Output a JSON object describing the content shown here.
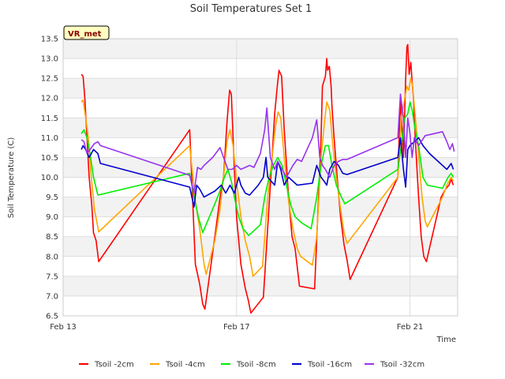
{
  "chart_data": {
    "type": "line",
    "title": "Soil Temperatures Set 1",
    "station_label": "VR_met",
    "xlabel": "Time",
    "ylabel": "Soil Temperature (C)",
    "xlim": [
      13.0,
      22.1
    ],
    "ylim": [
      6.5,
      13.5
    ],
    "x_ticks": [
      {
        "value": 13,
        "label": "Feb 13"
      },
      {
        "value": 17,
        "label": "Feb 17"
      },
      {
        "value": 21,
        "label": "Feb 21"
      }
    ],
    "y_ticks": [
      "6.5",
      "7.0",
      "7.5",
      "8.0",
      "8.5",
      "9.0",
      "9.5",
      "10.0",
      "10.5",
      "11.0",
      "11.5",
      "12.0",
      "12.5",
      "13.0",
      "13.5"
    ],
    "grid": true,
    "legend_position": "bottom",
    "series": [
      {
        "name": "Tsoil -2cm",
        "color": "#ff0000",
        "points": [
          [
            13.42,
            12.6
          ],
          [
            13.46,
            12.55
          ],
          [
            13.5,
            12.0
          ],
          [
            13.55,
            11.0
          ],
          [
            13.6,
            10.0
          ],
          [
            13.66,
            9.3
          ],
          [
            13.7,
            8.6
          ],
          [
            13.76,
            8.4
          ],
          [
            13.82,
            7.87
          ],
          [
            15.92,
            11.2
          ],
          [
            16.05,
            7.8
          ],
          [
            16.15,
            7.3
          ],
          [
            16.22,
            6.8
          ],
          [
            16.27,
            6.67
          ],
          [
            16.5,
            8.5
          ],
          [
            16.62,
            9.5
          ],
          [
            16.7,
            10.0
          ],
          [
            16.78,
            11.4
          ],
          [
            16.84,
            12.2
          ],
          [
            16.88,
            12.1
          ],
          [
            16.95,
            10.2
          ],
          [
            17.0,
            9.0
          ],
          [
            17.1,
            7.8
          ],
          [
            17.2,
            7.2
          ],
          [
            17.27,
            6.9
          ],
          [
            17.33,
            6.57
          ],
          [
            17.62,
            6.97
          ],
          [
            17.82,
            10.5
          ],
          [
            17.88,
            11.6
          ],
          [
            17.94,
            12.3
          ],
          [
            17.98,
            12.7
          ],
          [
            18.04,
            12.55
          ],
          [
            18.1,
            11.2
          ],
          [
            18.2,
            9.5
          ],
          [
            18.28,
            8.5
          ],
          [
            18.35,
            8.2
          ],
          [
            18.45,
            7.25
          ],
          [
            18.8,
            7.18
          ],
          [
            18.95,
            11.0
          ],
          [
            18.98,
            12.3
          ],
          [
            19.05,
            12.55
          ],
          [
            19.08,
            13.0
          ],
          [
            19.1,
            12.7
          ],
          [
            19.14,
            12.8
          ],
          [
            19.18,
            12.3
          ],
          [
            19.2,
            11.8
          ],
          [
            19.25,
            11.0
          ],
          [
            19.32,
            10.0
          ],
          [
            19.4,
            9.0
          ],
          [
            19.48,
            8.3
          ],
          [
            19.55,
            7.9
          ],
          [
            19.62,
            7.42
          ],
          [
            20.72,
            10.0
          ],
          [
            20.78,
            12.0
          ],
          [
            20.85,
            10.5
          ],
          [
            20.9,
            12.5
          ],
          [
            20.93,
            13.3
          ],
          [
            20.95,
            13.35
          ],
          [
            20.98,
            12.6
          ],
          [
            21.02,
            12.9
          ],
          [
            21.05,
            12.4
          ],
          [
            21.08,
            12.0
          ],
          [
            21.12,
            11.0
          ],
          [
            21.2,
            9.5
          ],
          [
            21.26,
            8.5
          ],
          [
            21.32,
            8.0
          ],
          [
            21.38,
            7.87
          ],
          [
            21.72,
            9.5
          ],
          [
            21.82,
            9.7
          ],
          [
            21.9,
            9.8
          ],
          [
            21.95,
            9.95
          ],
          [
            22.0,
            9.8
          ]
        ]
      },
      {
        "name": "Tsoil -4cm",
        "color": "#ffa500",
        "points": [
          [
            13.42,
            11.9
          ],
          [
            13.46,
            11.95
          ],
          [
            13.52,
            11.5
          ],
          [
            13.58,
            11.0
          ],
          [
            13.65,
            10.0
          ],
          [
            13.72,
            9.2
          ],
          [
            13.82,
            8.62
          ],
          [
            15.92,
            10.8
          ],
          [
            16.05,
            9.4
          ],
          [
            16.15,
            8.7
          ],
          [
            16.25,
            7.8
          ],
          [
            16.3,
            7.55
          ],
          [
            16.5,
            8.4
          ],
          [
            16.62,
            9.2
          ],
          [
            16.7,
            10.0
          ],
          [
            16.78,
            10.9
          ],
          [
            16.85,
            11.2
          ],
          [
            16.92,
            10.8
          ],
          [
            17.0,
            9.9
          ],
          [
            17.1,
            9.0
          ],
          [
            17.2,
            8.4
          ],
          [
            17.3,
            8.0
          ],
          [
            17.38,
            7.5
          ],
          [
            17.6,
            7.75
          ],
          [
            17.72,
            9.5
          ],
          [
            17.82,
            10.5
          ],
          [
            17.9,
            11.3
          ],
          [
            17.96,
            11.65
          ],
          [
            18.02,
            11.5
          ],
          [
            18.1,
            10.5
          ],
          [
            18.2,
            9.4
          ],
          [
            18.3,
            8.7
          ],
          [
            18.4,
            8.2
          ],
          [
            18.48,
            8.0
          ],
          [
            18.75,
            7.78
          ],
          [
            18.85,
            8.5
          ],
          [
            18.95,
            10.5
          ],
          [
            19.02,
            11.3
          ],
          [
            19.08,
            11.9
          ],
          [
            19.15,
            11.7
          ],
          [
            19.22,
            10.8
          ],
          [
            19.3,
            10.0
          ],
          [
            19.4,
            9.2
          ],
          [
            19.48,
            8.6
          ],
          [
            19.55,
            8.33
          ],
          [
            20.72,
            10.0
          ],
          [
            20.8,
            11.5
          ],
          [
            20.88,
            12.0
          ],
          [
            20.93,
            12.3
          ],
          [
            20.97,
            12.2
          ],
          [
            21.02,
            12.5
          ],
          [
            21.06,
            12.3
          ],
          [
            21.1,
            11.8
          ],
          [
            21.18,
            10.8
          ],
          [
            21.28,
            9.5
          ],
          [
            21.35,
            8.9
          ],
          [
            21.4,
            8.75
          ],
          [
            21.75,
            9.5
          ],
          [
            21.85,
            9.8
          ],
          [
            21.95,
            10.0
          ],
          [
            22.0,
            9.9
          ]
        ]
      },
      {
        "name": "Tsoil -8cm",
        "color": "#00ee00",
        "points": [
          [
            13.42,
            11.1
          ],
          [
            13.48,
            11.2
          ],
          [
            13.55,
            11.0
          ],
          [
            13.62,
            10.6
          ],
          [
            13.7,
            10.0
          ],
          [
            13.8,
            9.55
          ],
          [
            15.92,
            10.1
          ],
          [
            16.02,
            9.5
          ],
          [
            16.12,
            9.0
          ],
          [
            16.22,
            8.6
          ],
          [
            16.45,
            9.2
          ],
          [
            16.6,
            9.6
          ],
          [
            16.72,
            10.0
          ],
          [
            16.8,
            10.2
          ],
          [
            16.88,
            9.9
          ],
          [
            16.95,
            9.5
          ],
          [
            17.05,
            9.0
          ],
          [
            17.15,
            8.7
          ],
          [
            17.28,
            8.53
          ],
          [
            17.55,
            8.8
          ],
          [
            17.65,
            9.5
          ],
          [
            17.75,
            10.0
          ],
          [
            17.85,
            10.3
          ],
          [
            17.95,
            10.5
          ],
          [
            18.05,
            10.3
          ],
          [
            18.15,
            9.8
          ],
          [
            18.25,
            9.3
          ],
          [
            18.35,
            9.0
          ],
          [
            18.5,
            8.85
          ],
          [
            18.72,
            8.7
          ],
          [
            18.85,
            9.5
          ],
          [
            18.95,
            10.3
          ],
          [
            19.05,
            10.8
          ],
          [
            19.12,
            10.8
          ],
          [
            19.2,
            10.3
          ],
          [
            19.3,
            9.8
          ],
          [
            19.42,
            9.5
          ],
          [
            19.5,
            9.33
          ],
          [
            20.72,
            10.2
          ],
          [
            20.8,
            10.8
          ],
          [
            20.88,
            11.5
          ],
          [
            20.95,
            11.6
          ],
          [
            21.0,
            11.9
          ],
          [
            21.05,
            11.7
          ],
          [
            21.12,
            11.2
          ],
          [
            21.2,
            10.8
          ],
          [
            21.3,
            10.0
          ],
          [
            21.4,
            9.8
          ],
          [
            21.75,
            9.72
          ],
          [
            21.88,
            10.0
          ],
          [
            21.95,
            10.1
          ],
          [
            22.0,
            10.0
          ]
        ]
      },
      {
        "name": "Tsoil -16cm",
        "color": "#0000cc",
        "points": [
          [
            13.42,
            10.7
          ],
          [
            13.46,
            10.8
          ],
          [
            13.52,
            10.7
          ],
          [
            13.6,
            10.5
          ],
          [
            13.7,
            10.7
          ],
          [
            13.8,
            10.6
          ],
          [
            13.86,
            10.35
          ],
          [
            15.92,
            9.75
          ],
          [
            16.02,
            9.25
          ],
          [
            16.08,
            9.8
          ],
          [
            16.15,
            9.7
          ],
          [
            16.25,
            9.5
          ],
          [
            16.5,
            9.65
          ],
          [
            16.65,
            9.8
          ],
          [
            16.75,
            9.6
          ],
          [
            16.85,
            9.8
          ],
          [
            16.95,
            9.6
          ],
          [
            17.05,
            10.0
          ],
          [
            17.1,
            9.8
          ],
          [
            17.2,
            9.6
          ],
          [
            17.3,
            9.55
          ],
          [
            17.5,
            9.8
          ],
          [
            17.62,
            10.0
          ],
          [
            17.68,
            10.5
          ],
          [
            17.72,
            10.0
          ],
          [
            17.8,
            9.9
          ],
          [
            17.88,
            9.8
          ],
          [
            17.95,
            10.4
          ],
          [
            18.02,
            10.2
          ],
          [
            18.1,
            9.8
          ],
          [
            18.2,
            10.0
          ],
          [
            18.3,
            9.9
          ],
          [
            18.4,
            9.8
          ],
          [
            18.75,
            9.85
          ],
          [
            18.85,
            10.3
          ],
          [
            18.95,
            10.0
          ],
          [
            19.02,
            9.9
          ],
          [
            19.08,
            9.8
          ],
          [
            19.15,
            10.2
          ],
          [
            19.25,
            10.4
          ],
          [
            19.35,
            10.3
          ],
          [
            19.45,
            10.1
          ],
          [
            19.55,
            10.07
          ],
          [
            20.72,
            10.5
          ],
          [
            20.78,
            11.0
          ],
          [
            20.85,
            10.2
          ],
          [
            20.9,
            9.75
          ],
          [
            20.95,
            10.7
          ],
          [
            21.0,
            10.8
          ],
          [
            21.1,
            10.9
          ],
          [
            21.2,
            11.0
          ],
          [
            21.3,
            10.8
          ],
          [
            21.45,
            10.6
          ],
          [
            21.75,
            10.3
          ],
          [
            21.85,
            10.2
          ],
          [
            21.95,
            10.35
          ],
          [
            22.0,
            10.2
          ]
        ]
      },
      {
        "name": "Tsoil -32cm",
        "color": "#9933ee",
        "points": [
          [
            13.42,
            10.95
          ],
          [
            13.48,
            10.9
          ],
          [
            13.55,
            10.6
          ],
          [
            13.62,
            10.7
          ],
          [
            13.72,
            10.85
          ],
          [
            13.8,
            10.9
          ],
          [
            13.86,
            10.8
          ],
          [
            15.92,
            10.05
          ],
          [
            16.02,
            9.6
          ],
          [
            16.1,
            10.25
          ],
          [
            16.18,
            10.2
          ],
          [
            16.25,
            10.3
          ],
          [
            16.45,
            10.5
          ],
          [
            16.62,
            10.75
          ],
          [
            16.7,
            10.5
          ],
          [
            16.8,
            10.2
          ],
          [
            16.9,
            10.2
          ],
          [
            17.0,
            10.3
          ],
          [
            17.1,
            10.2
          ],
          [
            17.2,
            10.25
          ],
          [
            17.3,
            10.3
          ],
          [
            17.4,
            10.25
          ],
          [
            17.55,
            10.6
          ],
          [
            17.65,
            11.2
          ],
          [
            17.7,
            11.75
          ],
          [
            17.78,
            10.5
          ],
          [
            17.88,
            10.2
          ],
          [
            17.95,
            10.4
          ],
          [
            18.05,
            10.2
          ],
          [
            18.15,
            10.0
          ],
          [
            18.3,
            10.3
          ],
          [
            18.4,
            10.45
          ],
          [
            18.5,
            10.4
          ],
          [
            18.75,
            11.0
          ],
          [
            18.85,
            11.45
          ],
          [
            18.92,
            10.5
          ],
          [
            18.98,
            10.3
          ],
          [
            19.05,
            10.2
          ],
          [
            19.15,
            10.0
          ],
          [
            19.25,
            10.3
          ],
          [
            19.35,
            10.4
          ],
          [
            19.45,
            10.45
          ],
          [
            19.55,
            10.45
          ],
          [
            20.72,
            11.0
          ],
          [
            20.78,
            12.1
          ],
          [
            20.85,
            11.5
          ],
          [
            20.9,
            10.5
          ],
          [
            20.95,
            11.5
          ],
          [
            21.0,
            11.1
          ],
          [
            21.05,
            10.5
          ],
          [
            21.1,
            11.0
          ],
          [
            21.2,
            10.8
          ],
          [
            21.35,
            11.05
          ],
          [
            21.75,
            11.15
          ],
          [
            21.85,
            10.9
          ],
          [
            21.92,
            10.7
          ],
          [
            21.98,
            10.85
          ],
          [
            22.02,
            10.65
          ]
        ]
      }
    ]
  }
}
